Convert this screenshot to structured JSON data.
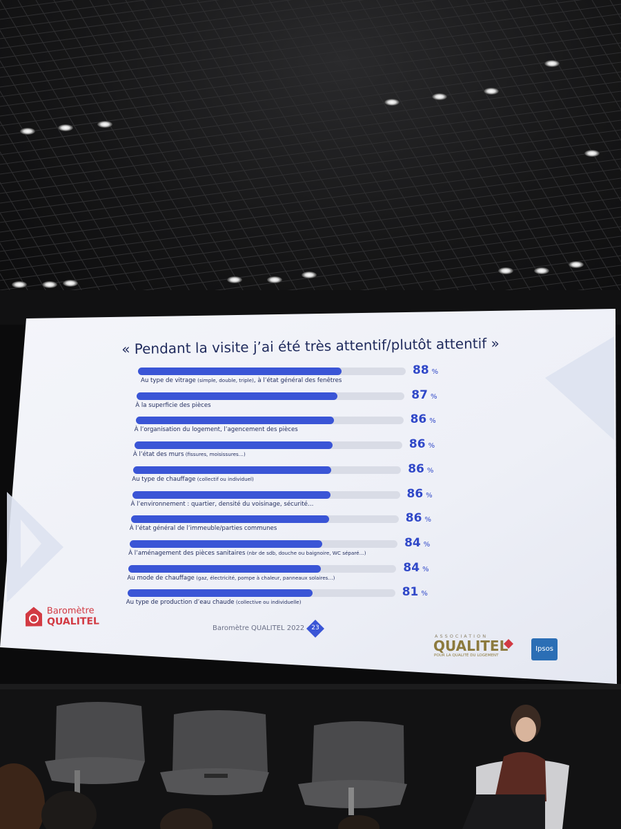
{
  "slide": {
    "title": "« Pendant la visite j’ai été très attentif/plutôt attentif »",
    "percent_sign": "%",
    "items": [
      {
        "label": "Au type de vitrage",
        "detail": "(simple, double, triple)",
        "suffix": ", à l’état général des fenêtres",
        "value": 88,
        "value_text": "88"
      },
      {
        "label": "À la superficie des pièces",
        "detail": "",
        "suffix": "",
        "value": 87,
        "value_text": "87"
      },
      {
        "label": "À l’organisation du logement, l’agencement des pièces",
        "detail": "",
        "suffix": "",
        "value": 86,
        "value_text": "86"
      },
      {
        "label": "À l’état des murs",
        "detail": "(fissures, moisissures…)",
        "suffix": "",
        "value": 86,
        "value_text": "86"
      },
      {
        "label": "Au type de chauffage",
        "detail": "(collectif ou individuel)",
        "suffix": "",
        "value": 86,
        "value_text": "86"
      },
      {
        "label": "À l’environnement : quartier, densité du voisinage, sécurité…",
        "detail": "",
        "suffix": "",
        "value": 86,
        "value_text": "86"
      },
      {
        "label": "À l’état général de l’immeuble/parties communes",
        "detail": "",
        "suffix": "",
        "value": 86,
        "value_text": "86"
      },
      {
        "label": "À l’aménagement des pièces sanitaires",
        "detail": "(nbr de sdb, douche ou baignoire, WC séparé…)",
        "suffix": "",
        "value": 84,
        "value_text": "84"
      },
      {
        "label": "Au mode de chauffage",
        "detail": "(gaz, électricité, pompe à chaleur, panneaux solaires…)",
        "suffix": "",
        "value": 84,
        "value_text": "84"
      },
      {
        "label": "Au type de production d’eau chaude",
        "detail": "(collective ou individuelle)",
        "suffix": "",
        "value": 81,
        "value_text": "81"
      }
    ],
    "brand": {
      "line1": "Baromètre",
      "line2": "QUALITEL"
    },
    "footer": "Baromètre QUALITEL 2022",
    "page_number": "23",
    "association": {
      "top": "ASSOCIATION",
      "name": "QUALITEL",
      "tagline": "POUR LA QUALITÉ DU LOGEMENT"
    },
    "partner": "Ipsos"
  },
  "colors": {
    "bar_fill": "#3a55d6",
    "bar_track": "#d9dce6",
    "title_text": "#1f2a5c",
    "brand_red": "#d23a43",
    "ipsos_blue": "#2b6eb5"
  }
}
